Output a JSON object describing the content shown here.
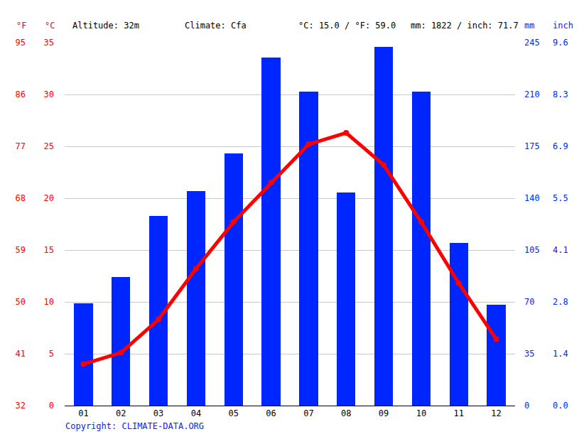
{
  "chart_data": {
    "type": "bar",
    "categories": [
      "01",
      "02",
      "03",
      "04",
      "05",
      "06",
      "07",
      "08",
      "09",
      "10",
      "11",
      "12"
    ],
    "series": [
      {
        "type": "bar",
        "color": "#0026ff",
        "axis": "y2",
        "values": [
          69,
          87,
          128,
          145,
          170,
          235,
          212,
          144,
          242,
          212,
          110,
          68
        ]
      },
      {
        "type": "line",
        "color": "#ff0000",
        "marker": "circle",
        "line_style": "solid",
        "values": [
          4.0,
          5.1,
          8.3,
          13.2,
          17.7,
          21.5,
          25.2,
          26.3,
          23.2,
          17.7,
          11.8,
          6.4
        ]
      }
    ],
    "ylim": [
      0,
      35
    ],
    "yticks": [
      0,
      5,
      10,
      15,
      20,
      25,
      30,
      35
    ],
    "y_label": "°C",
    "y2lim": [
      0,
      245
    ],
    "y2ticks": [
      0,
      35,
      70,
      105,
      140,
      175,
      210,
      245
    ],
    "y2_label": "mm",
    "y3lim": [
      32,
      95
    ],
    "y3ticks": [
      32,
      41,
      50,
      59,
      68,
      77,
      86,
      95
    ],
    "y3_label": "°F",
    "y4lim": [
      0,
      9.646
    ],
    "y4ticks": [
      {
        "value": 0,
        "label": "0.0"
      },
      {
        "value": 1.378,
        "label": "1.4"
      },
      {
        "value": 2.756,
        "label": "2.8"
      },
      {
        "value": 4.134,
        "label": "4.1"
      },
      {
        "value": 5.512,
        "label": "5.5"
      },
      {
        "value": 6.89,
        "label": "6.9"
      },
      {
        "value": 8.268,
        "label": "8.3"
      },
      {
        "value": 9.646,
        "label": "9.6"
      }
    ],
    "y4_label": "inch",
    "annotations": [
      "Altitude: 32m",
      "Climate: Cfa",
      "°C: 15.0 / °F: 59.0",
      "mm: 1822 / inch: 71.7",
      "Copyright: CLIMATE-DATA.ORG"
    ],
    "grid": true
  }
}
